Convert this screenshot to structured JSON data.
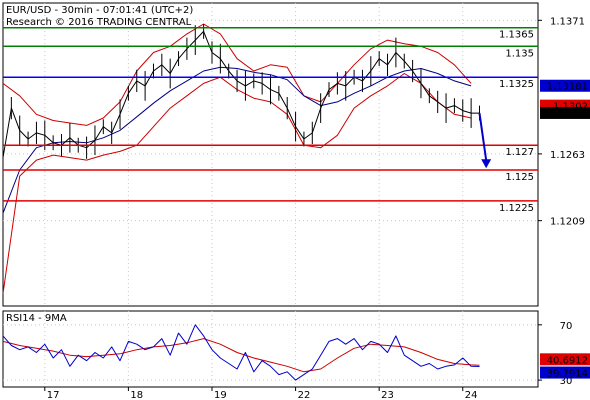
{
  "header": {
    "title_line": "EUR/USD - 30min - 07:01:41 (UTC+2)",
    "research_line": "Research © 2016 TRADING CENTRAL"
  },
  "chart_data": [
    {
      "type": "line",
      "panel": "price",
      "ylim": [
        1.114,
        1.1385
      ],
      "y_ticks": [
        1.1371,
        1.1263,
        1.1209
      ],
      "x_ticks": [
        {
          "label": "17",
          "x": 0.1
        },
        {
          "label": "18",
          "x": 1.1
        },
        {
          "label": "19",
          "x": 2.1
        },
        {
          "label": "22",
          "x": 3.1
        },
        {
          "label": "23",
          "x": 4.1
        },
        {
          "label": "24",
          "x": 5.1
        }
      ],
      "xlim": [
        -0.4,
        6.0
      ],
      "levels": [
        {
          "value": 1.1365,
          "label": "1.1365",
          "color": "#008000"
        },
        {
          "value": 1.135,
          "label": "1.135",
          "color": "#008000"
        },
        {
          "value": 1.1325,
          "label": "1.1325",
          "color": "#0000ff"
        },
        {
          "value": 1.127,
          "label": "1.127",
          "color": "#e00000"
        },
        {
          "value": 1.125,
          "label": "1.125",
          "color": "#e00000"
        },
        {
          "value": 1.1225,
          "label": "1.1225",
          "color": "#e00000"
        }
      ],
      "price_tags": [
        {
          "value": 1.13181,
          "label": "1.13181",
          "bg": "#0000cc",
          "fg": "#ffffff"
        },
        {
          "value": 1.1302,
          "label": "1.1302",
          "bg": "#e00000",
          "fg": "#ffffff"
        },
        {
          "value": 1.12961,
          "label": "1.12961",
          "bg": "#000000",
          "fg": "#ffffff"
        }
      ],
      "close_series": {
        "x": [
          -0.4,
          -0.3,
          -0.2,
          -0.1,
          0.0,
          0.1,
          0.2,
          0.3,
          0.4,
          0.5,
          0.6,
          0.7,
          0.8,
          0.9,
          1.0,
          1.1,
          1.2,
          1.3,
          1.4,
          1.5,
          1.6,
          1.7,
          1.8,
          1.9,
          2.0,
          2.1,
          2.2,
          2.3,
          2.4,
          2.5,
          2.6,
          2.7,
          2.8,
          2.9,
          3.0,
          3.1,
          3.2,
          3.3,
          3.4,
          3.5,
          3.6,
          3.7,
          3.8,
          3.9,
          4.0,
          4.1,
          4.2,
          4.3,
          4.4,
          4.5,
          4.6,
          4.7,
          4.8,
          4.9,
          5.0,
          5.1,
          5.2,
          5.3
        ],
        "values": [
          1.126,
          1.13,
          1.1282,
          1.1275,
          1.128,
          1.1278,
          1.1272,
          1.127,
          1.1276,
          1.127,
          1.1268,
          1.1274,
          1.1285,
          1.128,
          1.1295,
          1.1312,
          1.1322,
          1.1318,
          1.133,
          1.1335,
          1.1328,
          1.134,
          1.1348,
          1.1355,
          1.1362,
          1.1345,
          1.134,
          1.133,
          1.1322,
          1.1318,
          1.1322,
          1.132,
          1.1315,
          1.1312,
          1.13,
          1.1285,
          1.1275,
          1.128,
          1.13,
          1.1315,
          1.132,
          1.1318,
          1.1325,
          1.1322,
          1.133,
          1.134,
          1.1335,
          1.1345,
          1.1338,
          1.133,
          1.132,
          1.131,
          1.1305,
          1.13,
          1.1302,
          1.1298,
          1.1296,
          1.1296
        ]
      },
      "ma_series": {
        "x": [
          -0.4,
          -0.2,
          0.0,
          0.2,
          0.4,
          0.6,
          0.8,
          1.0,
          1.2,
          1.4,
          1.6,
          1.8,
          2.0,
          2.2,
          2.4,
          2.6,
          2.8,
          3.0,
          3.2,
          3.4,
          3.6,
          3.8,
          4.0,
          4.2,
          4.4,
          4.6,
          4.8,
          5.0,
          5.2
        ],
        "values": [
          1.1215,
          1.125,
          1.1268,
          1.1272,
          1.1273,
          1.1272,
          1.1276,
          1.1282,
          1.1293,
          1.1304,
          1.1314,
          1.1322,
          1.133,
          1.1333,
          1.1332,
          1.1329,
          1.1327,
          1.1323,
          1.131,
          1.1302,
          1.1305,
          1.1312,
          1.1318,
          1.1325,
          1.133,
          1.1332,
          1.1328,
          1.1322,
          1.1318
        ]
      },
      "bollinger_upper": {
        "x": [
          -0.4,
          -0.2,
          0.0,
          0.2,
          0.4,
          0.6,
          0.8,
          1.0,
          1.2,
          1.4,
          1.6,
          1.8,
          2.0,
          2.2,
          2.4,
          2.6,
          2.8,
          3.0,
          3.2,
          3.4,
          3.6,
          3.8,
          4.0,
          4.2,
          4.4,
          4.6,
          4.8,
          5.0,
          5.2
        ],
        "values": [
          1.132,
          1.131,
          1.1295,
          1.129,
          1.1288,
          1.1286,
          1.1292,
          1.1305,
          1.133,
          1.1345,
          1.135,
          1.136,
          1.1368,
          1.136,
          1.134,
          1.133,
          1.1335,
          1.1333,
          1.131,
          1.1305,
          1.132,
          1.1335,
          1.1348,
          1.1355,
          1.1352,
          1.135,
          1.1345,
          1.1335,
          1.132
        ]
      },
      "bollinger_lower": {
        "x": [
          -0.4,
          -0.2,
          0.0,
          0.2,
          0.4,
          0.6,
          0.8,
          1.0,
          1.2,
          1.4,
          1.6,
          1.8,
          2.0,
          2.2,
          2.4,
          2.6,
          2.8,
          3.0,
          3.2,
          3.4,
          3.6,
          3.8,
          4.0,
          4.2,
          4.4,
          4.6,
          4.8,
          5.0,
          5.2
        ],
        "values": [
          1.115,
          1.1245,
          1.1258,
          1.1262,
          1.126,
          1.1258,
          1.1262,
          1.1265,
          1.127,
          1.1285,
          1.13,
          1.131,
          1.132,
          1.1325,
          1.1315,
          1.1308,
          1.1305,
          1.1295,
          1.127,
          1.1268,
          1.1278,
          1.13,
          1.131,
          1.1318,
          1.1328,
          1.132,
          1.1305,
          1.1295,
          1.1292
        ]
      },
      "forecast_arrow": {
        "from": {
          "x": 5.3,
          "value": 1.1296
        },
        "to": {
          "x": 5.38,
          "value": 1.1253
        },
        "color": "#0000cc"
      }
    },
    {
      "type": "line",
      "panel": "rsi",
      "title": "RSI14 - 9MA",
      "ylim": [
        25,
        80
      ],
      "y_ticks": [
        70,
        30
      ],
      "xlim": [
        -0.4,
        6.0
      ],
      "tags": [
        {
          "value": 40.6912,
          "label": "40.6912",
          "bg": "#e00000",
          "fg": "#ffffff"
        },
        {
          "value": 39.7914,
          "label": "39.7914",
          "bg": "#0000cc",
          "fg": "#ffffff"
        }
      ],
      "rsi_series": {
        "x": [
          -0.4,
          -0.3,
          -0.2,
          -0.1,
          0.0,
          0.1,
          0.2,
          0.3,
          0.4,
          0.5,
          0.6,
          0.7,
          0.8,
          0.9,
          1.0,
          1.1,
          1.2,
          1.3,
          1.4,
          1.5,
          1.6,
          1.7,
          1.8,
          1.9,
          2.0,
          2.1,
          2.2,
          2.3,
          2.4,
          2.5,
          2.6,
          2.7,
          2.8,
          2.9,
          3.0,
          3.1,
          3.2,
          3.3,
          3.4,
          3.5,
          3.6,
          3.7,
          3.8,
          3.9,
          4.0,
          4.1,
          4.2,
          4.3,
          4.4,
          4.5,
          4.6,
          4.7,
          4.8,
          4.9,
          5.0,
          5.1,
          5.2,
          5.3
        ],
        "values": [
          62,
          55,
          52,
          54,
          50,
          56,
          46,
          52,
          40,
          48,
          44,
          50,
          46,
          54,
          44,
          58,
          56,
          52,
          54,
          60,
          48,
          64,
          56,
          70,
          62,
          52,
          46,
          42,
          38,
          50,
          36,
          44,
          40,
          34,
          36,
          30,
          34,
          38,
          48,
          58,
          60,
          56,
          60,
          52,
          58,
          56,
          50,
          62,
          48,
          44,
          40,
          42,
          38,
          40,
          41,
          46,
          40,
          39.8
        ]
      },
      "ma_series": {
        "x": [
          -0.4,
          -0.2,
          0.0,
          0.2,
          0.4,
          0.6,
          0.8,
          1.0,
          1.2,
          1.4,
          1.6,
          1.8,
          2.0,
          2.2,
          2.4,
          2.6,
          2.8,
          3.0,
          3.2,
          3.4,
          3.6,
          3.8,
          4.0,
          4.2,
          4.4,
          4.6,
          4.8,
          5.0,
          5.2,
          5.3
        ],
        "values": [
          58,
          55,
          53,
          51,
          48,
          47,
          48,
          49,
          52,
          54,
          55,
          57,
          60,
          56,
          50,
          46,
          43,
          40,
          36,
          38,
          46,
          53,
          56,
          55,
          54,
          50,
          45,
          42,
          41,
          40.7
        ]
      }
    }
  ]
}
